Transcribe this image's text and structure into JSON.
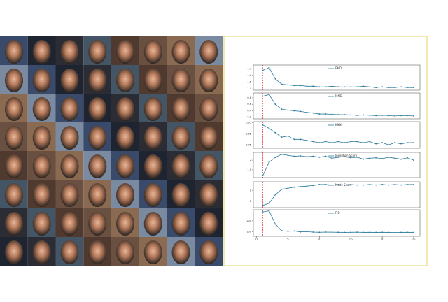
{
  "chart_data": [
    {
      "type": "line",
      "x": [
        1,
        2,
        3,
        4,
        5,
        6,
        7,
        8,
        9,
        10,
        11,
        12,
        13,
        14,
        15,
        16,
        17,
        18,
        19,
        20,
        21,
        22,
        23,
        24,
        25
      ],
      "xlim": [
        -0.5,
        26
      ],
      "ylim": [
        1.38,
        1.76
      ],
      "yticks": [
        1.4,
        1.5,
        1.6,
        1.7
      ],
      "vline": 1,
      "vline_color": "#d62728",
      "series": [
        {
          "name": "EMD",
          "color": "#2b7a9b",
          "values": [
            1.68,
            1.72,
            1.55,
            1.47,
            1.46,
            1.45,
            1.45,
            1.44,
            1.44,
            1.43,
            1.43,
            1.44,
            1.43,
            1.43,
            1.43,
            1.43,
            1.44,
            1.43,
            1.42,
            1.43,
            1.42,
            1.42,
            1.43,
            1.42,
            1.42
          ]
        }
      ]
    },
    {
      "type": "line",
      "x": [
        1,
        2,
        3,
        4,
        5,
        6,
        7,
        8,
        9,
        10,
        11,
        12,
        13,
        14,
        15,
        16,
        17,
        18,
        19,
        20,
        21,
        22,
        23,
        24,
        25
      ],
      "xlim": [
        -0.5,
        26
      ],
      "ylim": [
        0.15,
        0.95
      ],
      "yticks": [
        0.2,
        0.4,
        0.6,
        0.8
      ],
      "vline": 1,
      "vline_color": "#d62728",
      "series": [
        {
          "name": "MMD",
          "color": "#2b7a9b",
          "values": [
            0.85,
            0.9,
            0.6,
            0.45,
            0.42,
            0.4,
            0.38,
            0.35,
            0.33,
            0.3,
            0.3,
            0.29,
            0.28,
            0.28,
            0.27,
            0.26,
            0.27,
            0.26,
            0.25,
            0.26,
            0.25,
            0.24,
            0.25,
            0.25,
            0.24
          ]
        }
      ]
    },
    {
      "type": "line",
      "x": [
        1,
        2,
        3,
        4,
        5,
        6,
        7,
        8,
        9,
        10,
        11,
        12,
        13,
        14,
        15,
        16,
        17,
        18,
        19,
        20,
        21,
        22,
        23,
        24,
        25
      ],
      "xlim": [
        -0.5,
        26
      ],
      "ylim": [
        0.72,
        0.96
      ],
      "yticks": [
        0.75,
        0.85,
        0.95
      ],
      "vline": 1,
      "vline_color": "#d62728",
      "series": [
        {
          "name": "KNN",
          "color": "#2b7a9b",
          "values": [
            0.93,
            0.9,
            0.86,
            0.82,
            0.83,
            0.8,
            0.8,
            0.79,
            0.78,
            0.77,
            0.78,
            0.77,
            0.78,
            0.77,
            0.78,
            0.78,
            0.77,
            0.78,
            0.76,
            0.77,
            0.75,
            0.77,
            0.76,
            0.77,
            0.77
          ]
        }
      ]
    },
    {
      "type": "line",
      "x": [
        1,
        2,
        3,
        4,
        5,
        6,
        7,
        8,
        9,
        10,
        11,
        12,
        13,
        14,
        15,
        16,
        17,
        18,
        19,
        20,
        21,
        22,
        23,
        24,
        25
      ],
      "xlim": [
        -0.5,
        26
      ],
      "ylim": [
        1.1,
        2.4
      ],
      "yticks": [
        1.5,
        2
      ],
      "vline": 1,
      "vline_color": "#d62728",
      "series": [
        {
          "name": "Inception Score",
          "color": "#2b7a9b",
          "values": [
            1.2,
            1.9,
            2.15,
            2.3,
            2.25,
            2.2,
            2.22,
            2.18,
            2.2,
            2.15,
            2.2,
            2.1,
            2.15,
            2.18,
            2.12,
            2.15,
            2.05,
            2.1,
            2.12,
            2.08,
            2.15,
            2.1,
            2.05,
            2.12,
            2.0
          ]
        }
      ]
    },
    {
      "type": "line",
      "x": [
        1,
        2,
        3,
        4,
        5,
        6,
        7,
        8,
        9,
        10,
        11,
        12,
        13,
        14,
        15,
        16,
        17,
        18,
        19,
        20,
        21,
        22,
        23,
        24,
        25
      ],
      "xlim": [
        -0.5,
        26
      ],
      "ylim": [
        0.4,
        2.8
      ],
      "yticks": [
        1,
        2
      ],
      "vline": 1,
      "vline_color": "#d62728",
      "series": [
        {
          "name": "Mode Score",
          "color": "#2b7a9b",
          "values": [
            0.6,
            0.8,
            1.6,
            2.1,
            2.2,
            2.3,
            2.35,
            2.4,
            2.45,
            2.55,
            2.55,
            2.5,
            2.55,
            2.5,
            2.55,
            2.5,
            2.5,
            2.55,
            2.5,
            2.55,
            2.5,
            2.55,
            2.5,
            2.55,
            2.55
          ]
        }
      ]
    },
    {
      "type": "line",
      "x": [
        1,
        2,
        3,
        4,
        5,
        6,
        7,
        8,
        9,
        10,
        11,
        12,
        13,
        14,
        15,
        16,
        17,
        18,
        19,
        20,
        21,
        22,
        23,
        24,
        25
      ],
      "xlim": [
        -0.5,
        26
      ],
      "xticks": [
        0,
        5,
        10,
        15,
        20,
        25
      ],
      "ylim": [
        60,
        300
      ],
      "yticks": [
        100,
        200
      ],
      "vline": 1,
      "vline_color": "#d62728",
      "series": [
        {
          "name": "FID",
          "color": "#2b7a9b",
          "values": [
            280,
            290,
            170,
            110,
            105,
            108,
            100,
            102,
            98,
            96,
            98,
            97,
            96,
            95,
            96,
            97,
            95,
            96,
            95,
            96,
            95,
            94,
            95,
            96,
            95
          ]
        }
      ]
    }
  ]
}
